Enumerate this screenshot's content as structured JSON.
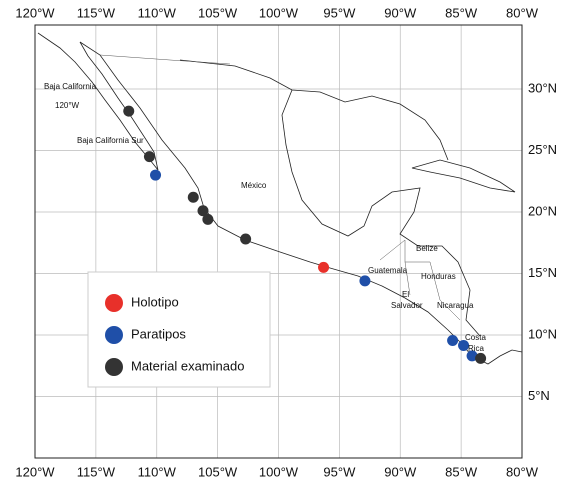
{
  "chart_data": {
    "type": "scatter",
    "xlim": [
      -120,
      -80
    ],
    "ylim": [
      0,
      35.2
    ],
    "xticks": [
      {
        "value": -120,
        "label": "120°W"
      },
      {
        "value": -115,
        "label": "115°W"
      },
      {
        "value": -110,
        "label": "110°W"
      },
      {
        "value": -105,
        "label": "105°W"
      },
      {
        "value": -100,
        "label": "100°W"
      },
      {
        "value": -95,
        "label": "95°W"
      },
      {
        "value": -90,
        "label": "90°W"
      },
      {
        "value": -85,
        "label": "85°W"
      },
      {
        "value": -80,
        "label": "80°W"
      }
    ],
    "yticks": [
      {
        "value": 5,
        "label": "5°N"
      },
      {
        "value": 10,
        "label": "10°N"
      },
      {
        "value": 15,
        "label": "15°N"
      },
      {
        "value": 20,
        "label": "20°N"
      },
      {
        "value": 25,
        "label": "25°N"
      },
      {
        "value": 30,
        "label": "30°N"
      }
    ],
    "grid": true,
    "series": [
      {
        "name": "Holotipo",
        "color": "#e8302a",
        "x": [
          -96.3
        ],
        "y": [
          15.5
        ]
      },
      {
        "name": "Paratipos",
        "color": "#1f4fa8",
        "x": [
          -110.1,
          -92.9,
          -85.7,
          -84.8,
          -84.1
        ],
        "y": [
          23.0,
          14.4,
          9.55,
          9.15,
          8.3
        ]
      },
      {
        "name": "Material examinado",
        "color": "#333333",
        "x": [
          -112.3,
          -110.6,
          -107.0,
          -106.2,
          -105.8,
          -102.7,
          -83.4
        ],
        "y": [
          28.2,
          24.5,
          21.2,
          20.1,
          19.4,
          17.8,
          8.1
        ]
      }
    ],
    "annotations": [
      {
        "text": "Baja California"
      },
      {
        "text": "120°W"
      },
      {
        "text": "Baja California Sur"
      },
      {
        "text": "México"
      },
      {
        "text": "Belize"
      },
      {
        "text": "Guatemala"
      },
      {
        "text": "Honduras"
      },
      {
        "text": "El"
      },
      {
        "text": "Salvador"
      },
      {
        "text": "Nicaragua"
      },
      {
        "text": "Costa"
      },
      {
        "text": "Rica"
      }
    ]
  }
}
